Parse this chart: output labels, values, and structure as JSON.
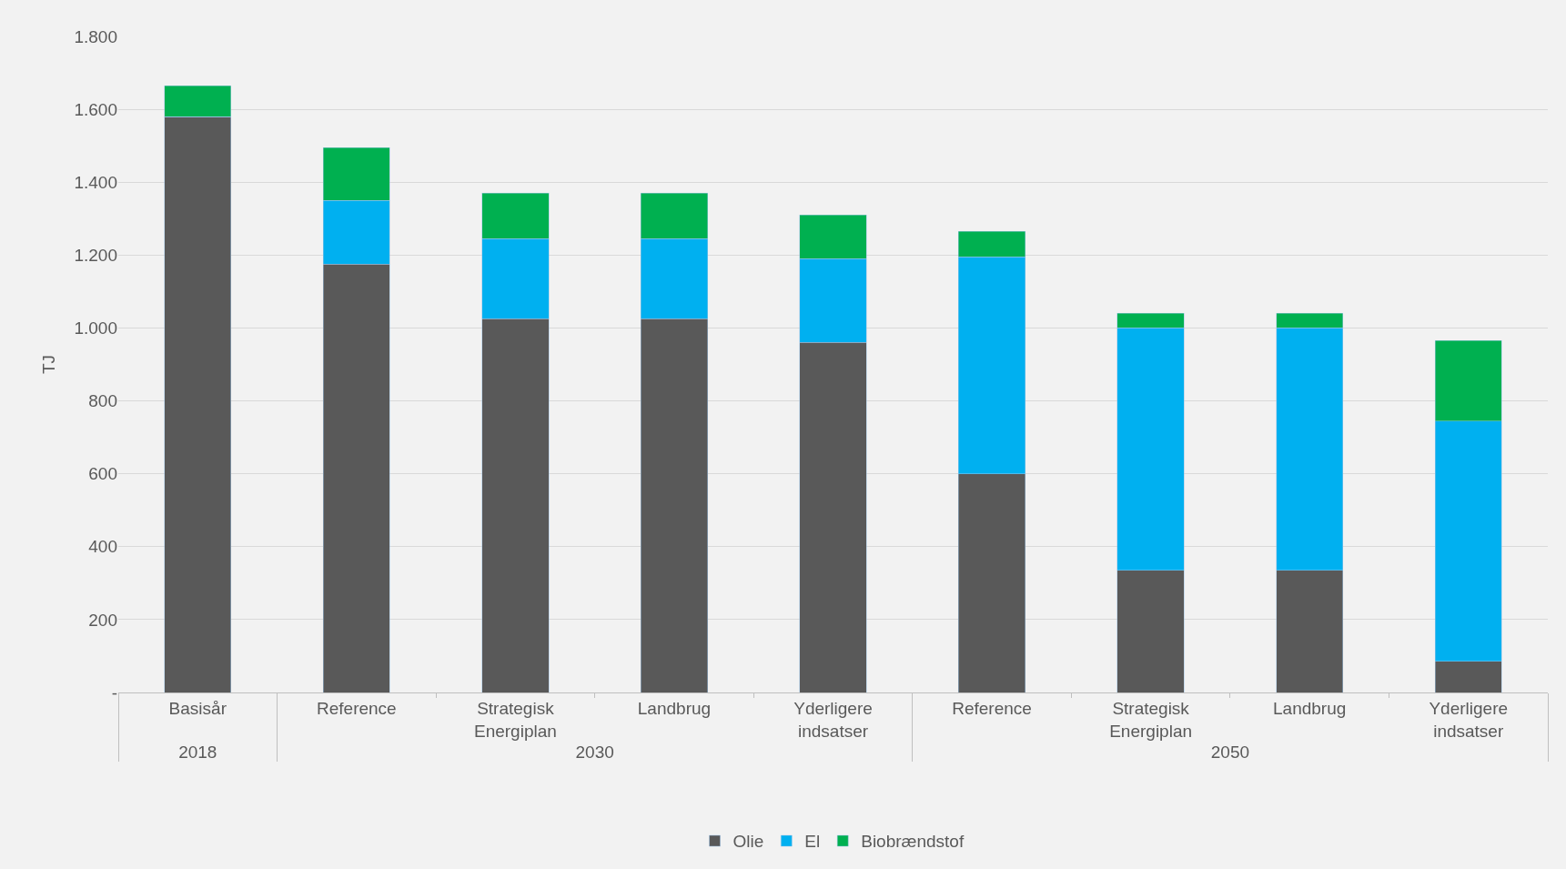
{
  "chart_data": {
    "type": "bar",
    "stacked": true,
    "ylabel": "TJ",
    "categories": [
      "Basisår",
      "Reference",
      "Strategisk Energiplan",
      "Landbrug",
      "Yderligere indsatser",
      "Reference",
      "Strategisk Energiplan",
      "Landbrug",
      "Yderligere indsatser"
    ],
    "annotations": [
      "2018",
      "2030",
      "2050"
    ],
    "series": [
      {
        "name": "Olie",
        "color": "#595959",
        "values": [
          1580,
          1175,
          1025,
          1025,
          960,
          600,
          335,
          335,
          85
        ]
      },
      {
        "name": "El",
        "color": "#00b0f0",
        "values": [
          0,
          175,
          220,
          220,
          230,
          595,
          665,
          665,
          660
        ]
      },
      {
        "name": "Biobrændstof",
        "color": "#00b050",
        "values": [
          85,
          145,
          125,
          125,
          120,
          70,
          40,
          40,
          220
        ]
      }
    ],
    "ylim": [
      0,
      1800
    ],
    "yticks": [
      {
        "value": 0,
        "label": "-"
      },
      {
        "value": 200,
        "label": "200"
      },
      {
        "value": 400,
        "label": "400"
      },
      {
        "value": 600,
        "label": "600"
      },
      {
        "value": 800,
        "label": "800"
      },
      {
        "value": 1000,
        "label": "1.000"
      },
      {
        "value": 1200,
        "label": "1.200"
      },
      {
        "value": 1400,
        "label": "1.400"
      },
      {
        "value": 1600,
        "label": "1.600"
      },
      {
        "value": 1800,
        "label": "1.800"
      }
    ],
    "grid": "y",
    "legend": "bottom"
  }
}
